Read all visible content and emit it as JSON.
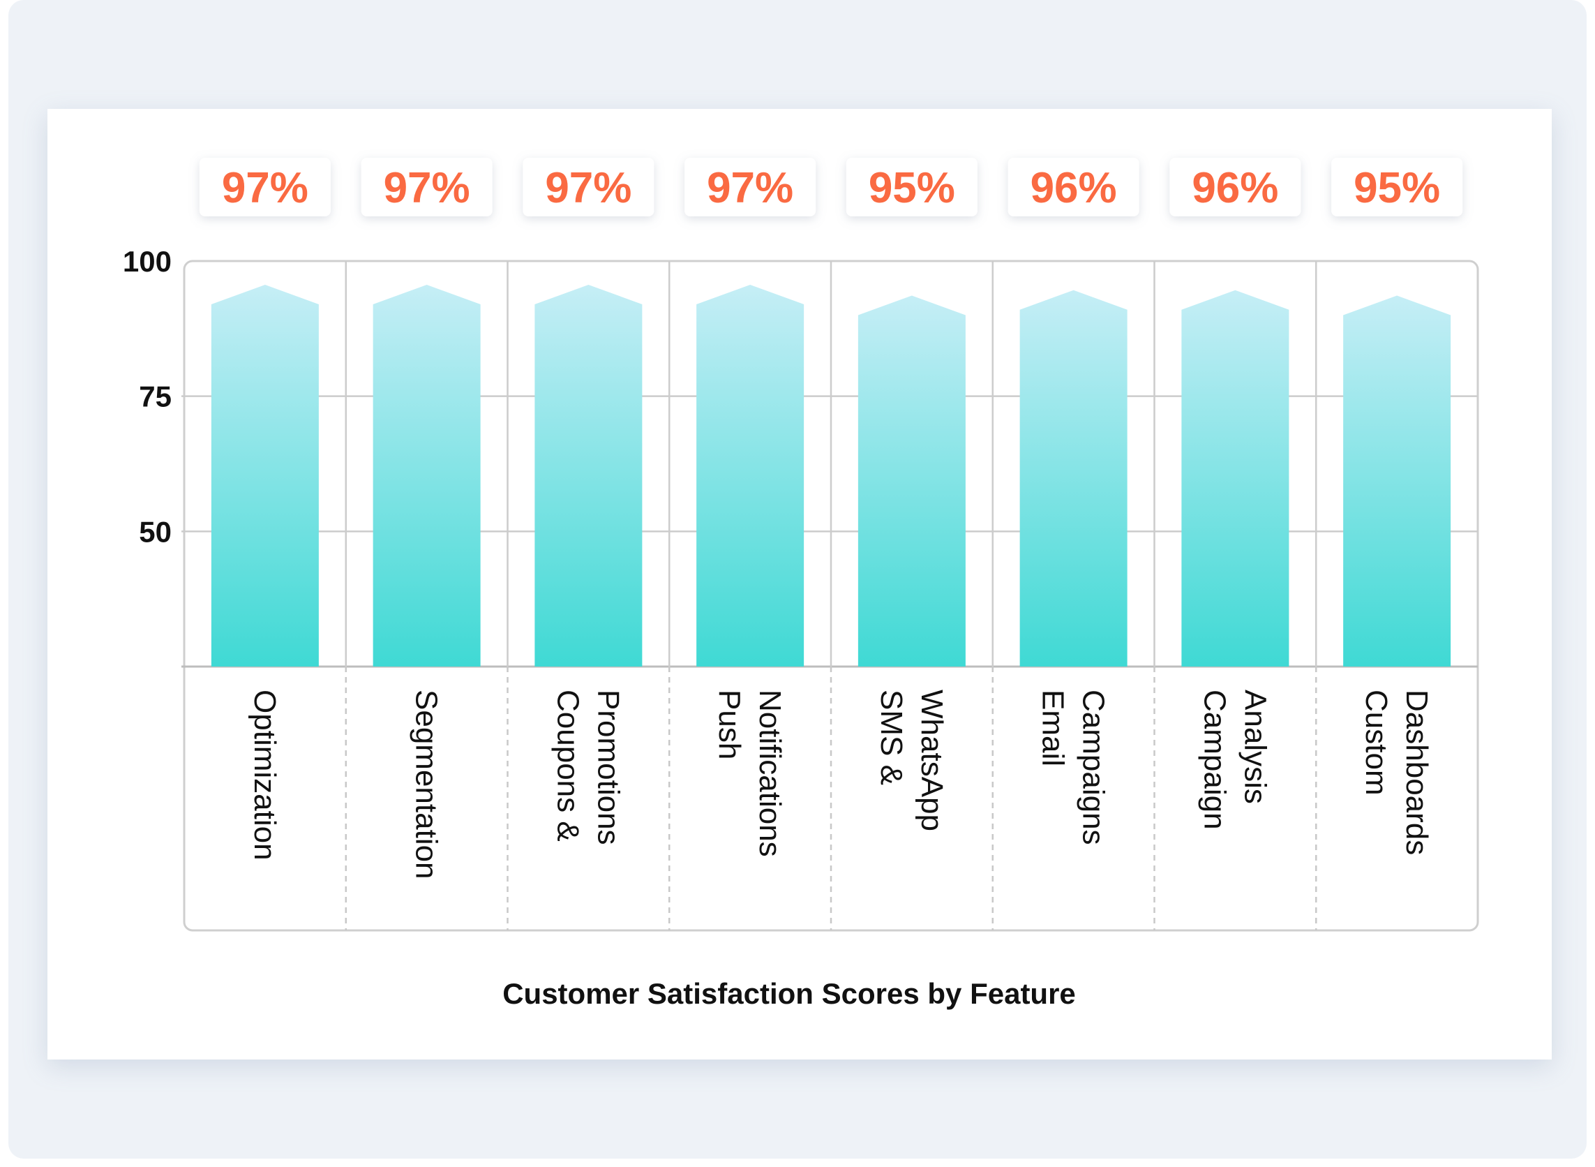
{
  "chart_data": {
    "type": "bar",
    "title": "",
    "xlabel": "Customer Satisfaction Scores by Feature",
    "ylabel": "",
    "categories": [
      [
        "Optimization"
      ],
      [
        "Segmentation"
      ],
      [
        "Coupons &",
        "Promotions"
      ],
      [
        "Push",
        "Notifications"
      ],
      [
        "SMS &",
        "WhatsApp"
      ],
      [
        "Email",
        "Campaigns"
      ],
      [
        "Campaign",
        "Analysis"
      ],
      [
        "Custom",
        "Dashboards"
      ]
    ],
    "values": [
      97,
      97,
      97,
      97,
      95,
      96,
      96,
      95
    ],
    "value_labels": [
      "97%",
      "97%",
      "97%",
      "97%",
      "95%",
      "96%",
      "96%",
      "95%"
    ],
    "y_ticks": [
      "100",
      "75",
      "50"
    ],
    "ylim": [
      25,
      100
    ],
    "grid": true,
    "colors": {
      "bar_top": "#c6eef6",
      "bar_bottom": "#3fd9d4",
      "label": "#fa6a42"
    }
  }
}
